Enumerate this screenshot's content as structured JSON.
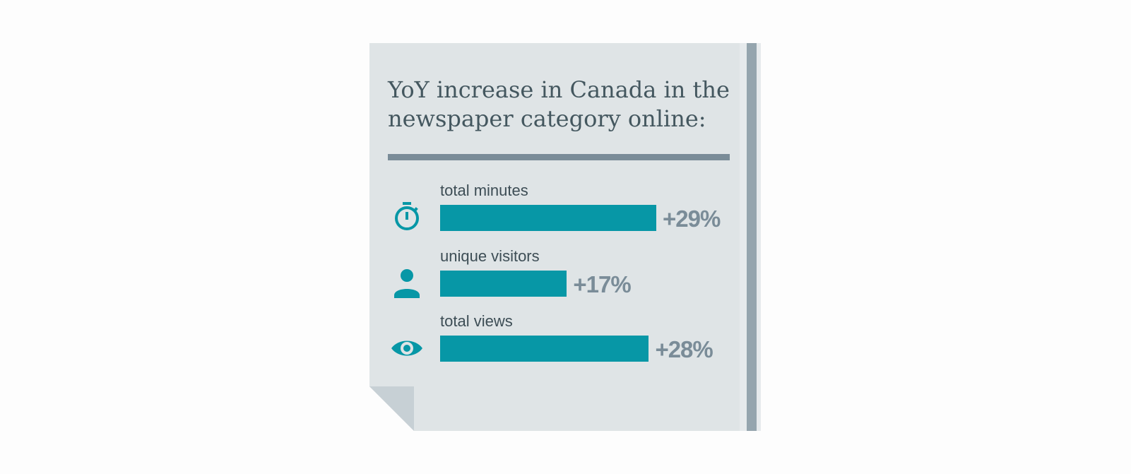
{
  "title": "YoY increase in Canada in the newspaper category online:",
  "colors": {
    "paper": "#dfe4e6",
    "bar": "#0797a6",
    "accent": "#7a8c98",
    "text": "#44575f"
  },
  "chart_data": {
    "type": "bar",
    "orientation": "horizontal",
    "title": "YoY increase in Canada in the newspaper category online:",
    "categories": [
      "total minutes",
      "unique visitors",
      "total views"
    ],
    "values": [
      29,
      17,
      28
    ],
    "value_labels": [
      "+29%",
      "+17%",
      "+28%"
    ],
    "icons": [
      "stopwatch-icon",
      "person-icon",
      "eye-icon"
    ],
    "unit": "%",
    "grid": false
  }
}
